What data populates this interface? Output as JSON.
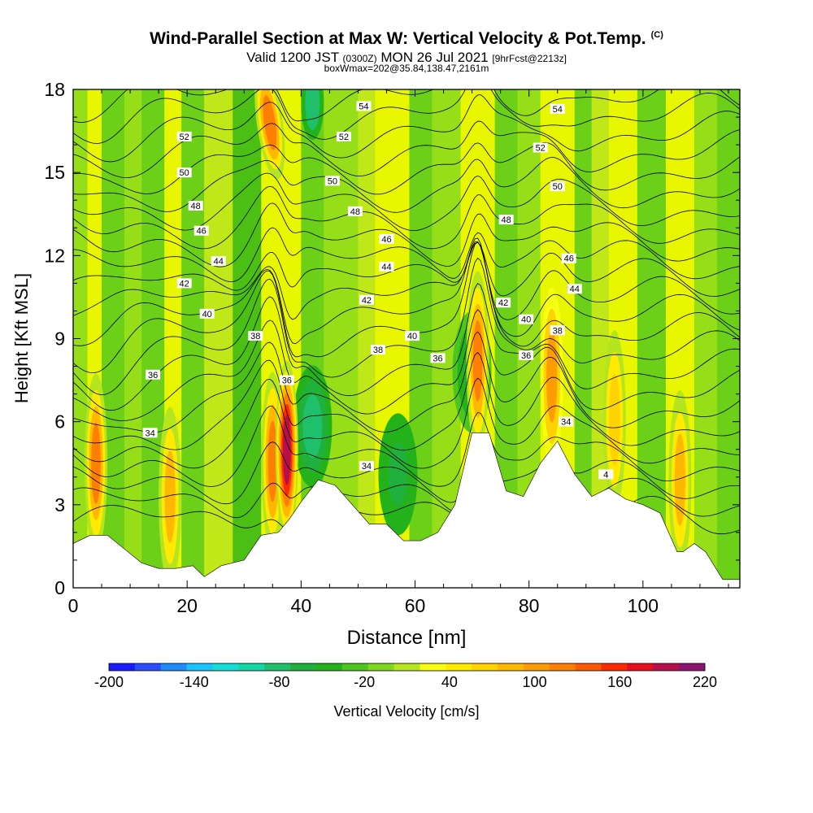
{
  "title": {
    "main": "Wind-Parallel Section at Max W: Vertical Velocity & Pot.Temp.",
    "copyright_mark": "(C)",
    "valid_prefix": "Valid 1200 JST",
    "valid_utc": "(0300Z)",
    "valid_date": "MON 26 Jul 2021",
    "forecast_info": "[9hrFcst@2213z]",
    "box_info": "boxWmax=202@35.84,138.47,2161m"
  },
  "chart_data": {
    "type": "heatmap",
    "xlabel": "Distance [nm]",
    "ylabel": "Height [Kft MSL]",
    "xlim": [
      0,
      117
    ],
    "ylim": [
      0,
      18
    ],
    "x_ticks": [
      0,
      20,
      40,
      60,
      80,
      100
    ],
    "y_ticks": [
      0,
      3,
      6,
      9,
      12,
      15,
      18
    ],
    "terrain": {
      "x": [
        0,
        3,
        6,
        9,
        12,
        15,
        18,
        21,
        23,
        26,
        30,
        33,
        36,
        38,
        40,
        43,
        46,
        49,
        52,
        55,
        58,
        61,
        64,
        67,
        70,
        73,
        76,
        79,
        82,
        85,
        88,
        91,
        94,
        97,
        100,
        103,
        106,
        107,
        109,
        111,
        114,
        117
      ],
      "height": [
        1.6,
        1.9,
        1.9,
        1.4,
        0.9,
        0.7,
        0.7,
        0.8,
        0.4,
        0.8,
        1.0,
        1.9,
        2.0,
        2.5,
        3.1,
        3.9,
        3.7,
        3.0,
        2.3,
        2.3,
        1.7,
        1.7,
        2.0,
        3.0,
        5.6,
        5.6,
        3.5,
        3.3,
        4.5,
        5.3,
        4.1,
        3.3,
        3.6,
        3.2,
        3.0,
        2.7,
        1.3,
        1.3,
        1.6,
        1.3,
        0.3,
        0.3
      ]
    },
    "vertical_velocity_updrafts": [
      {
        "x": 4,
        "w": 150
      },
      {
        "x": 17,
        "w": 110
      },
      {
        "x": 35,
        "w": 140
      },
      {
        "x": 37.5,
        "w": 220
      },
      {
        "x": 71,
        "w": 140
      },
      {
        "x": 84,
        "w": 120
      },
      {
        "x": 95,
        "w": 90
      },
      {
        "x": 106.5,
        "w": 100
      }
    ],
    "vertical_velocity_downdrafts": [
      {
        "x": 42,
        "w": -80
      },
      {
        "x": 57,
        "w": -60
      },
      {
        "x": 70,
        "w": -40
      }
    ],
    "theta_contours": [
      32,
      33,
      34,
      35,
      36,
      37,
      38,
      39,
      40,
      41,
      42,
      43,
      44,
      45,
      46,
      47,
      48,
      49,
      50,
      51,
      52,
      53,
      54,
      55
    ],
    "contour_labels": [
      {
        "text": "54",
        "x": 51,
        "y": 17.4
      },
      {
        "text": "52",
        "x": 19.5,
        "y": 16.3
      },
      {
        "text": "52",
        "x": 47.5,
        "y": 16.3
      },
      {
        "text": "54",
        "x": 85,
        "y": 17.3
      },
      {
        "text": "52",
        "x": 82,
        "y": 15.9
      },
      {
        "text": "50",
        "x": 19.5,
        "y": 15.0
      },
      {
        "text": "50",
        "x": 45.5,
        "y": 14.7
      },
      {
        "text": "50",
        "x": 85,
        "y": 14.5
      },
      {
        "text": "48",
        "x": 21.5,
        "y": 13.8
      },
      {
        "text": "48",
        "x": 49.5,
        "y": 13.6
      },
      {
        "text": "48",
        "x": 76,
        "y": 13.3
      },
      {
        "text": "46",
        "x": 22.5,
        "y": 12.9
      },
      {
        "text": "46",
        "x": 55,
        "y": 12.6
      },
      {
        "text": "46",
        "x": 87,
        "y": 11.9
      },
      {
        "text": "44",
        "x": 25.5,
        "y": 11.8
      },
      {
        "text": "44",
        "x": 55,
        "y": 11.6
      },
      {
        "text": "44",
        "x": 88,
        "y": 10.8
      },
      {
        "text": "42",
        "x": 19.5,
        "y": 11.0
      },
      {
        "text": "42",
        "x": 51.5,
        "y": 10.4
      },
      {
        "text": "42",
        "x": 75.5,
        "y": 10.3
      },
      {
        "text": "40",
        "x": 23.5,
        "y": 9.9
      },
      {
        "text": "40",
        "x": 59.5,
        "y": 9.1
      },
      {
        "text": "40",
        "x": 79.5,
        "y": 9.7
      },
      {
        "text": "38",
        "x": 32,
        "y": 9.1
      },
      {
        "text": "38",
        "x": 53.5,
        "y": 8.6
      },
      {
        "text": "38",
        "x": 85,
        "y": 9.3
      },
      {
        "text": "36",
        "x": 14,
        "y": 7.7
      },
      {
        "text": "36",
        "x": 37.5,
        "y": 7.5
      },
      {
        "text": "36",
        "x": 64,
        "y": 8.3
      },
      {
        "text": "36",
        "x": 79.5,
        "y": 8.4
      },
      {
        "text": "34",
        "x": 13.5,
        "y": 5.6
      },
      {
        "text": "34",
        "x": 51.5,
        "y": 4.4
      },
      {
        "text": "34",
        "x": 86.5,
        "y": 6.0
      },
      {
        "text": "4",
        "x": 93.5,
        "y": 4.1
      }
    ],
    "colorbar": {
      "label": "Vertical Velocity [cm/s]",
      "min": -200,
      "max": 220,
      "step": 20,
      "tick_labels": [
        "-200",
        "-140",
        "-80",
        "-20",
        "40",
        "100",
        "160",
        "220"
      ],
      "colors": [
        "#1a1aff",
        "#2a4dff",
        "#1e8cff",
        "#19c3ff",
        "#12e0d7",
        "#11d9a3",
        "#1fc06c",
        "#20b13c",
        "#24b21a",
        "#4cc51e",
        "#80d81e",
        "#b5e51f",
        "#f6ff12",
        "#ffea00",
        "#ffd200",
        "#ffb800",
        "#ff9d00",
        "#ff7f00",
        "#ff5a00",
        "#ff2a00",
        "#e70f1e",
        "#b5104c",
        "#8b1470"
      ]
    }
  }
}
